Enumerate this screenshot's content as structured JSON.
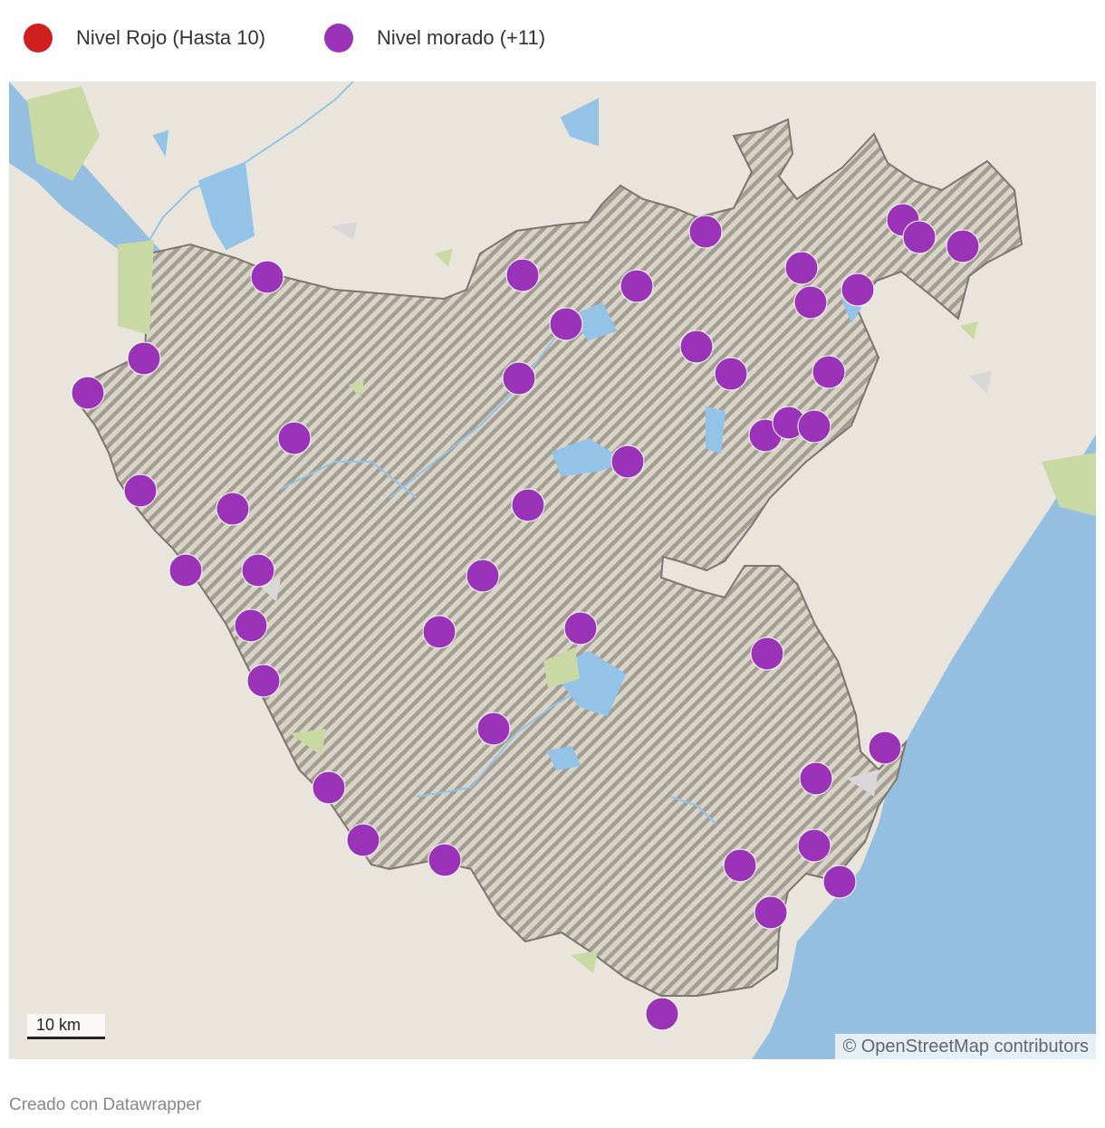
{
  "legend": [
    {
      "label": "Nivel Rojo (Hasta 10)",
      "color": "#d11f20"
    },
    {
      "label": "Nivel morado (+11)",
      "color": "#9b33b8"
    }
  ],
  "map": {
    "colors": {
      "sea": "#95bfe0",
      "land": "#e9e5dc",
      "region_stripe": "#a39d92",
      "region_border": "#7a7670",
      "vegetation": "#c9d9a3",
      "water": "#93c3e6",
      "urban": "#d8d8d8"
    },
    "scale_label": "10 km",
    "attribution": "© OpenStreetMap contributors"
  },
  "markers": {
    "count": 44,
    "level": "Nivel morado (+11)",
    "color": "#9b33b8"
  },
  "footer": "Creado con Datawrapper"
}
